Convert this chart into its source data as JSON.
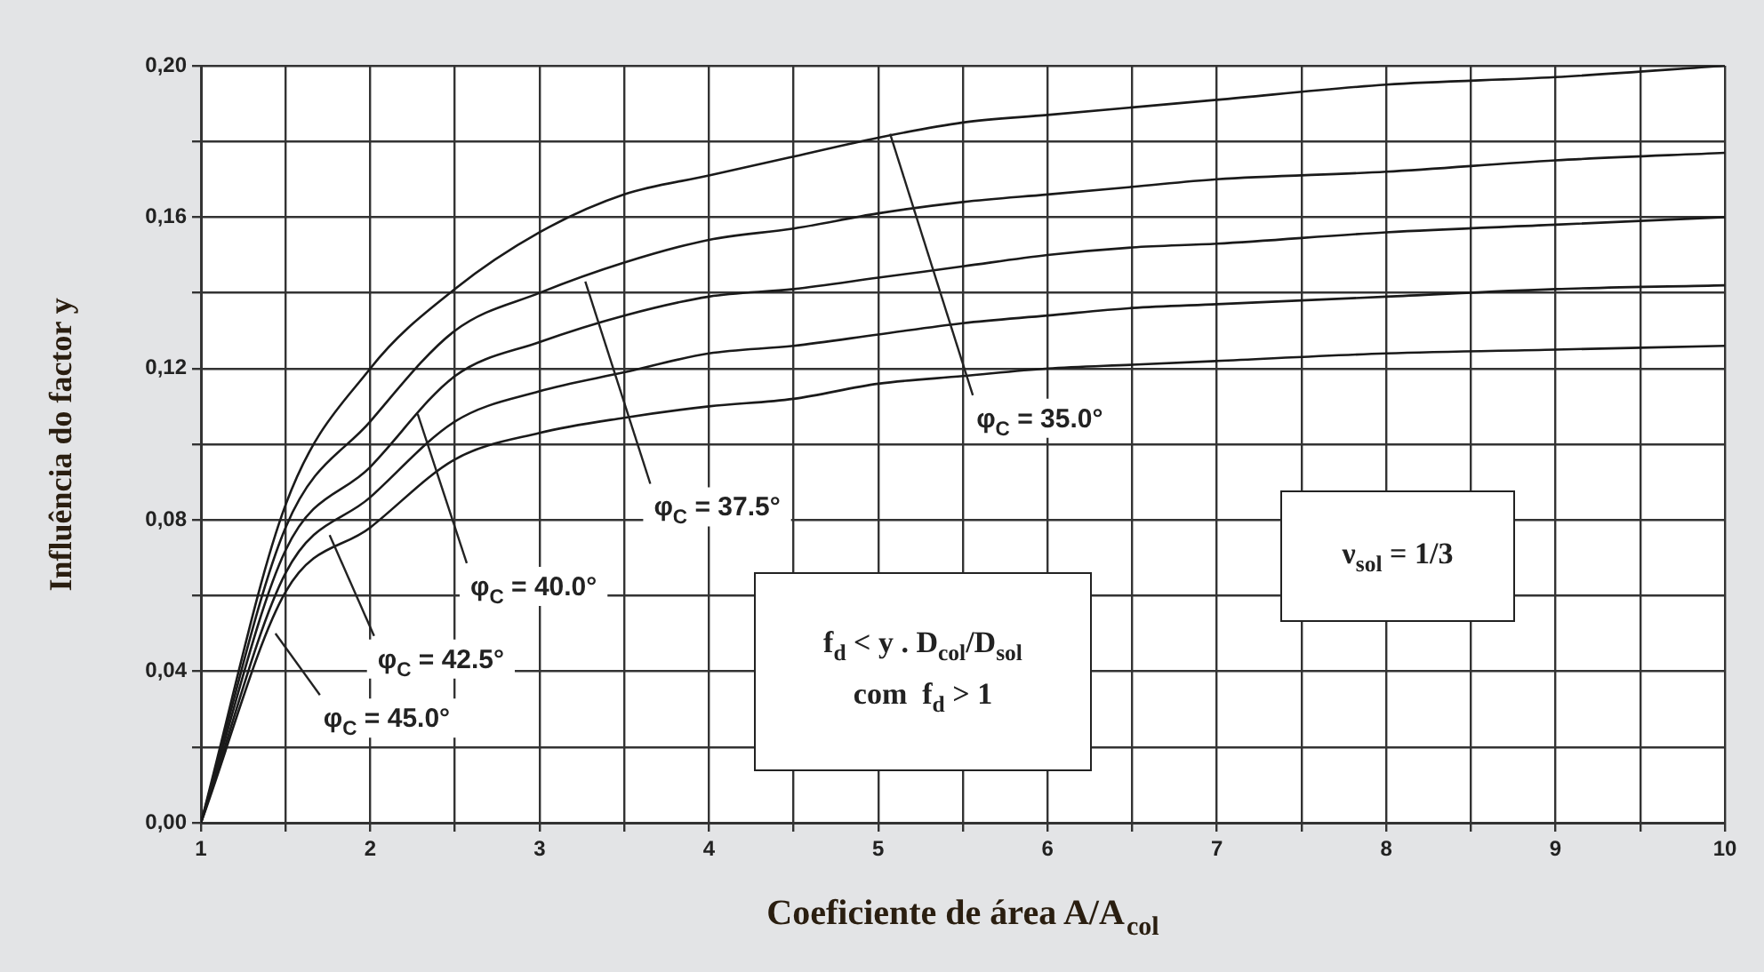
{
  "chart_data": {
    "type": "line",
    "xlabel": "Coeficiente de área A/A$_{col}$",
    "ylabel": "Influência do factor y",
    "xlim": [
      1,
      10
    ],
    "ylim": [
      0,
      0.2
    ],
    "xticks": [
      1,
      {
        "value": 1.5,
        "label": null
      },
      2,
      {
        "value": 2.5,
        "label": null
      },
      3,
      {
        "value": 3.5,
        "label": null
      },
      4,
      {
        "value": 4.5,
        "label": null
      },
      5,
      {
        "value": 5.5,
        "label": null
      },
      6,
      {
        "value": 6.5,
        "label": null
      },
      7,
      {
        "value": 7.5,
        "label": null
      },
      8,
      {
        "value": 8.5,
        "label": null
      },
      9,
      {
        "value": 9.5,
        "label": null
      },
      10
    ],
    "yticks": [
      {
        "value": 0,
        "label": "0,00"
      },
      {
        "value": 0.02,
        "label": null
      },
      {
        "value": 0.04,
        "label": "0,04"
      },
      {
        "value": 0.06,
        "label": null
      },
      {
        "value": 0.08,
        "label": "0,08"
      },
      {
        "value": 0.1,
        "label": null
      },
      {
        "value": 0.12,
        "label": "0,12"
      },
      {
        "value": 0.14,
        "label": null
      },
      {
        "value": 0.16,
        "label": "0,16"
      },
      {
        "value": 0.18,
        "label": null
      },
      {
        "value": 0.2,
        "label": "0,20"
      }
    ],
    "grid": true,
    "legend": false,
    "marker": "none",
    "line_style": "solid",
    "x": [
      1,
      1.5,
      2,
      2.5,
      3,
      3.5,
      4,
      4.5,
      5,
      5.5,
      6,
      6.5,
      7,
      8,
      9,
      10
    ],
    "series": [
      {
        "color": "#1a1a1a",
        "values": [
          0,
          0.084,
          0.12,
          0.141,
          0.156,
          0.166,
          0.171,
          0.176,
          0.181,
          0.185,
          0.187,
          0.189,
          0.191,
          0.195,
          0.197,
          0.2
        ]
      },
      {
        "color": "#1a1a1a",
        "values": [
          0,
          0.078,
          0.106,
          0.13,
          0.14,
          0.148,
          0.154,
          0.157,
          0.161,
          0.164,
          0.166,
          0.168,
          0.17,
          0.172,
          0.175,
          0.177
        ]
      },
      {
        "color": "#1a1a1a",
        "values": [
          0,
          0.072,
          0.094,
          0.118,
          0.127,
          0.134,
          0.139,
          0.141,
          0.144,
          0.147,
          0.15,
          0.152,
          0.153,
          0.156,
          0.158,
          0.16
        ]
      },
      {
        "color": "#1a1a1a",
        "values": [
          0,
          0.066,
          0.086,
          0.106,
          0.114,
          0.119,
          0.124,
          0.126,
          0.129,
          0.132,
          0.134,
          0.136,
          0.137,
          0.139,
          0.141,
          0.142
        ]
      },
      {
        "color": "#1a1a1a",
        "values": [
          0,
          0.061,
          0.078,
          0.096,
          0.103,
          0.107,
          0.11,
          0.112,
          0.116,
          0.118,
          0.12,
          0.121,
          0.122,
          0.124,
          0.125,
          0.126
        ]
      }
    ],
    "annotations": [
      {
        "text": "φ$_{C}$ = 35.0°",
        "x": 5.07,
        "y": 0.182
      },
      {
        "text": "φ$_{C}$ = 37.5°",
        "x": 3.27,
        "y": 0.143
      },
      {
        "text": "φ$_{C}$ = 40.0°",
        "x": 2.28,
        "y": 0.108
      },
      {
        "text": "φ$_{C}$ = 42.5°",
        "x": 1.76,
        "y": 0.076
      },
      {
        "text": "φ$_{C}$ = 45.0°",
        "x": 1.44,
        "y": 0.05
      },
      "f$_{d}$ < y . D$_{col}$/D$_{sol}$\ncom  f$_{d}$ > 1",
      "ν$_{sol}$ = 1/3"
    ]
  }
}
